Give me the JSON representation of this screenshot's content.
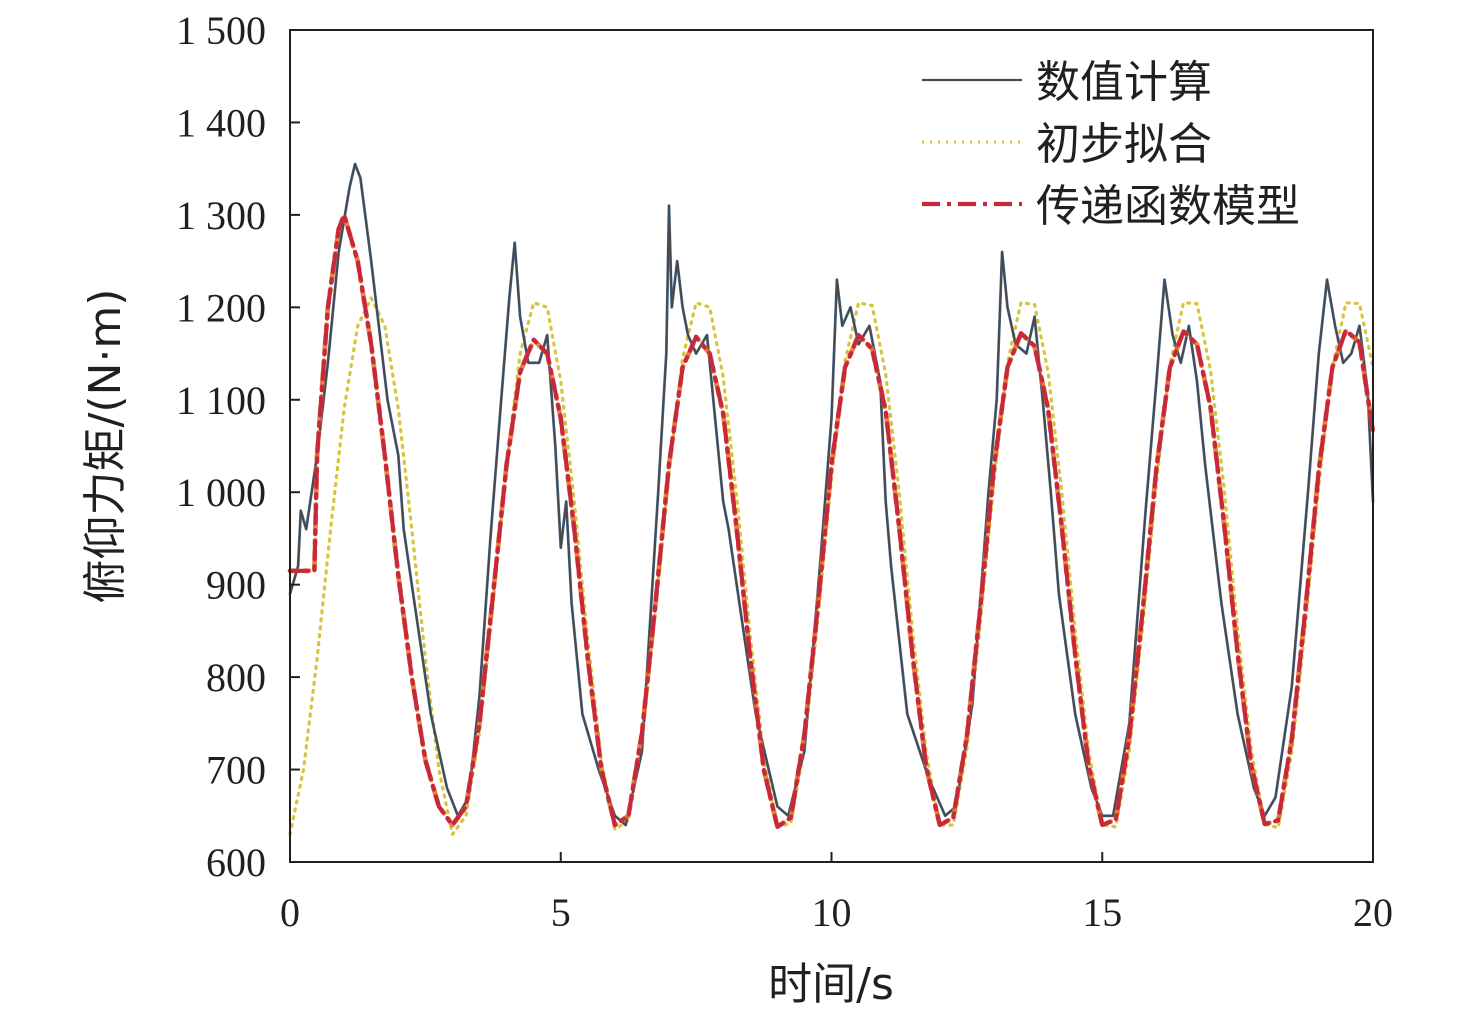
{
  "chart_data": {
    "type": "line",
    "title": "",
    "xlabel": "时间/s",
    "ylabel": "俯仰力矩/(N·m)",
    "xlim": [
      0,
      20
    ],
    "ylim": [
      600,
      1500
    ],
    "xticks": [
      0,
      5,
      10,
      15,
      20
    ],
    "xtick_labels": [
      "0",
      "5",
      "10",
      "15",
      "20"
    ],
    "yticks": [
      600,
      700,
      800,
      900,
      1000,
      1100,
      1200,
      1300,
      1400,
      1500
    ],
    "ytick_labels": [
      "600",
      "700",
      "800",
      "900",
      "1 000",
      "1 100",
      "1 200",
      "1 300",
      "1 400",
      "1 500"
    ],
    "grid": false,
    "legend_position": "top-right",
    "series": [
      {
        "name": "数值计算",
        "color": "#4a4a4a",
        "highlight_color": "#2f78c8",
        "style": "solid",
        "x": [
          0,
          0.15,
          0.2,
          0.3,
          0.5,
          0.7,
          0.9,
          1.1,
          1.2,
          1.3,
          1.5,
          1.8,
          2.0,
          2.1,
          2.3,
          2.6,
          2.9,
          3.1,
          3.3,
          3.5,
          3.7,
          3.9,
          4.05,
          4.15,
          4.25,
          4.4,
          4.6,
          4.75,
          4.9,
          5.0,
          5.1,
          5.2,
          5.4,
          5.7,
          6.0,
          6.2,
          6.5,
          6.8,
          6.95,
          7.0,
          7.05,
          7.15,
          7.25,
          7.35,
          7.5,
          7.7,
          7.85,
          8.0,
          8.1,
          8.3,
          8.6,
          9.0,
          9.2,
          9.5,
          9.8,
          10.0,
          10.1,
          10.2,
          10.35,
          10.5,
          10.7,
          10.9,
          11.0,
          11.1,
          11.4,
          11.8,
          12.1,
          12.3,
          12.6,
          12.9,
          13.05,
          13.15,
          13.25,
          13.4,
          13.6,
          13.75,
          13.9,
          14.05,
          14.2,
          14.5,
          14.8,
          15.0,
          15.2,
          15.5,
          15.8,
          16.0,
          16.15,
          16.3,
          16.45,
          16.6,
          16.75,
          16.9,
          17.0,
          17.2,
          17.5,
          17.8,
          18.0,
          18.2,
          18.5,
          18.8,
          19.0,
          19.15,
          19.3,
          19.45,
          19.6,
          19.75,
          19.9,
          20.0
        ],
        "y": [
          890,
          920,
          980,
          960,
          1040,
          1140,
          1260,
          1330,
          1355,
          1340,
          1250,
          1100,
          1040,
          960,
          880,
          760,
          680,
          650,
          670,
          780,
          950,
          1100,
          1210,
          1270,
          1190,
          1140,
          1140,
          1170,
          1050,
          940,
          990,
          880,
          760,
          700,
          650,
          640,
          720,
          1000,
          1150,
          1310,
          1200,
          1250,
          1200,
          1170,
          1150,
          1170,
          1080,
          990,
          960,
          880,
          760,
          660,
          650,
          720,
          930,
          1080,
          1230,
          1180,
          1200,
          1160,
          1180,
          1120,
          990,
          920,
          760,
          690,
          650,
          660,
          770,
          1000,
          1100,
          1260,
          1200,
          1160,
          1150,
          1190,
          1100,
          1000,
          890,
          760,
          680,
          650,
          650,
          750,
          980,
          1120,
          1230,
          1170,
          1140,
          1180,
          1120,
          1030,
          980,
          880,
          760,
          680,
          650,
          670,
          790,
          1000,
          1150,
          1230,
          1180,
          1140,
          1150,
          1180,
          1110,
          990
        ]
      },
      {
        "name": "初步拟合",
        "color": "#d8c43a",
        "style": "dotted",
        "x": [
          0,
          0.25,
          0.5,
          0.75,
          1.0,
          1.25,
          1.5,
          1.75,
          2.0,
          2.25,
          2.5,
          2.75,
          3.0,
          3.25,
          3.5,
          3.75,
          4.0,
          4.25,
          4.5,
          4.75,
          5.0,
          5.25,
          5.5,
          5.75,
          6.0,
          6.25,
          6.5,
          6.75,
          7.0,
          7.25,
          7.5,
          7.75,
          8.0,
          8.25,
          8.5,
          8.75,
          9.0,
          9.25,
          9.5,
          9.75,
          10.0,
          10.25,
          10.5,
          10.75,
          11.0,
          11.25,
          11.5,
          11.75,
          12.0,
          12.25,
          12.5,
          12.75,
          13.0,
          13.25,
          13.5,
          13.75,
          14.0,
          14.25,
          14.5,
          14.75,
          15.0,
          15.25,
          15.5,
          15.75,
          16.0,
          16.25,
          16.5,
          16.75,
          17.0,
          17.25,
          17.5,
          17.75,
          18.0,
          18.25,
          18.5,
          18.75,
          19.0,
          19.25,
          19.5,
          19.75,
          20.0
        ],
        "y": [
          630,
          700,
          820,
          960,
          1090,
          1180,
          1210,
          1180,
          1090,
          960,
          820,
          700,
          630,
          650,
          740,
          880,
          1030,
          1150,
          1205,
          1200,
          1120,
          990,
          840,
          710,
          635,
          645,
          730,
          870,
          1020,
          1145,
          1205,
          1200,
          1125,
          995,
          845,
          715,
          638,
          642,
          725,
          865,
          1015,
          1142,
          1205,
          1202,
          1128,
          1000,
          848,
          718,
          640,
          640,
          722,
          860,
          1012,
          1140,
          1205,
          1203,
          1130,
          1002,
          850,
          720,
          640,
          638,
          720,
          858,
          1010,
          1138,
          1205,
          1204,
          1132,
          1005,
          852,
          722,
          641,
          637,
          718,
          855,
          1008,
          1135,
          1205,
          1204,
          1135
        ]
      },
      {
        "name": "传递函数模型",
        "color": "#c8283c",
        "highlight_color": "#e0702a",
        "style": "dash-dot",
        "x": [
          0,
          0.25,
          0.45,
          0.5,
          0.7,
          0.9,
          1.0,
          1.25,
          1.5,
          1.75,
          2.0,
          2.25,
          2.5,
          2.75,
          3.0,
          3.25,
          3.5,
          3.75,
          4.0,
          4.25,
          4.5,
          4.75,
          5.0,
          5.25,
          5.5,
          5.75,
          6.0,
          6.25,
          6.5,
          6.75,
          7.0,
          7.25,
          7.5,
          7.75,
          8.0,
          8.25,
          8.5,
          8.75,
          9.0,
          9.25,
          9.5,
          9.75,
          10.0,
          10.25,
          10.5,
          10.75,
          11.0,
          11.25,
          11.5,
          11.75,
          12.0,
          12.25,
          12.5,
          12.75,
          13.0,
          13.25,
          13.5,
          13.75,
          14.0,
          14.25,
          14.5,
          14.75,
          15.0,
          15.25,
          15.5,
          15.75,
          16.0,
          16.25,
          16.5,
          16.75,
          17.0,
          17.25,
          17.5,
          17.75,
          18.0,
          18.25,
          18.5,
          18.75,
          19.0,
          19.25,
          19.5,
          19.75,
          20.0
        ],
        "y": [
          915,
          915,
          915,
          1040,
          1200,
          1285,
          1300,
          1250,
          1160,
          1040,
          910,
          800,
          710,
          660,
          640,
          660,
          750,
          890,
          1030,
          1130,
          1165,
          1150,
          1080,
          960,
          820,
          700,
          640,
          650,
          740,
          880,
          1030,
          1135,
          1168,
          1150,
          1085,
          960,
          820,
          700,
          638,
          648,
          738,
          878,
          1030,
          1135,
          1170,
          1155,
          1088,
          962,
          822,
          702,
          640,
          648,
          736,
          876,
          1028,
          1135,
          1172,
          1158,
          1090,
          964,
          824,
          704,
          640,
          646,
          735,
          874,
          1026,
          1135,
          1174,
          1160,
          1092,
          966,
          826,
          705,
          641,
          645,
          733,
          872,
          1024,
          1135,
          1175,
          1162,
          1065
        ]
      }
    ]
  }
}
